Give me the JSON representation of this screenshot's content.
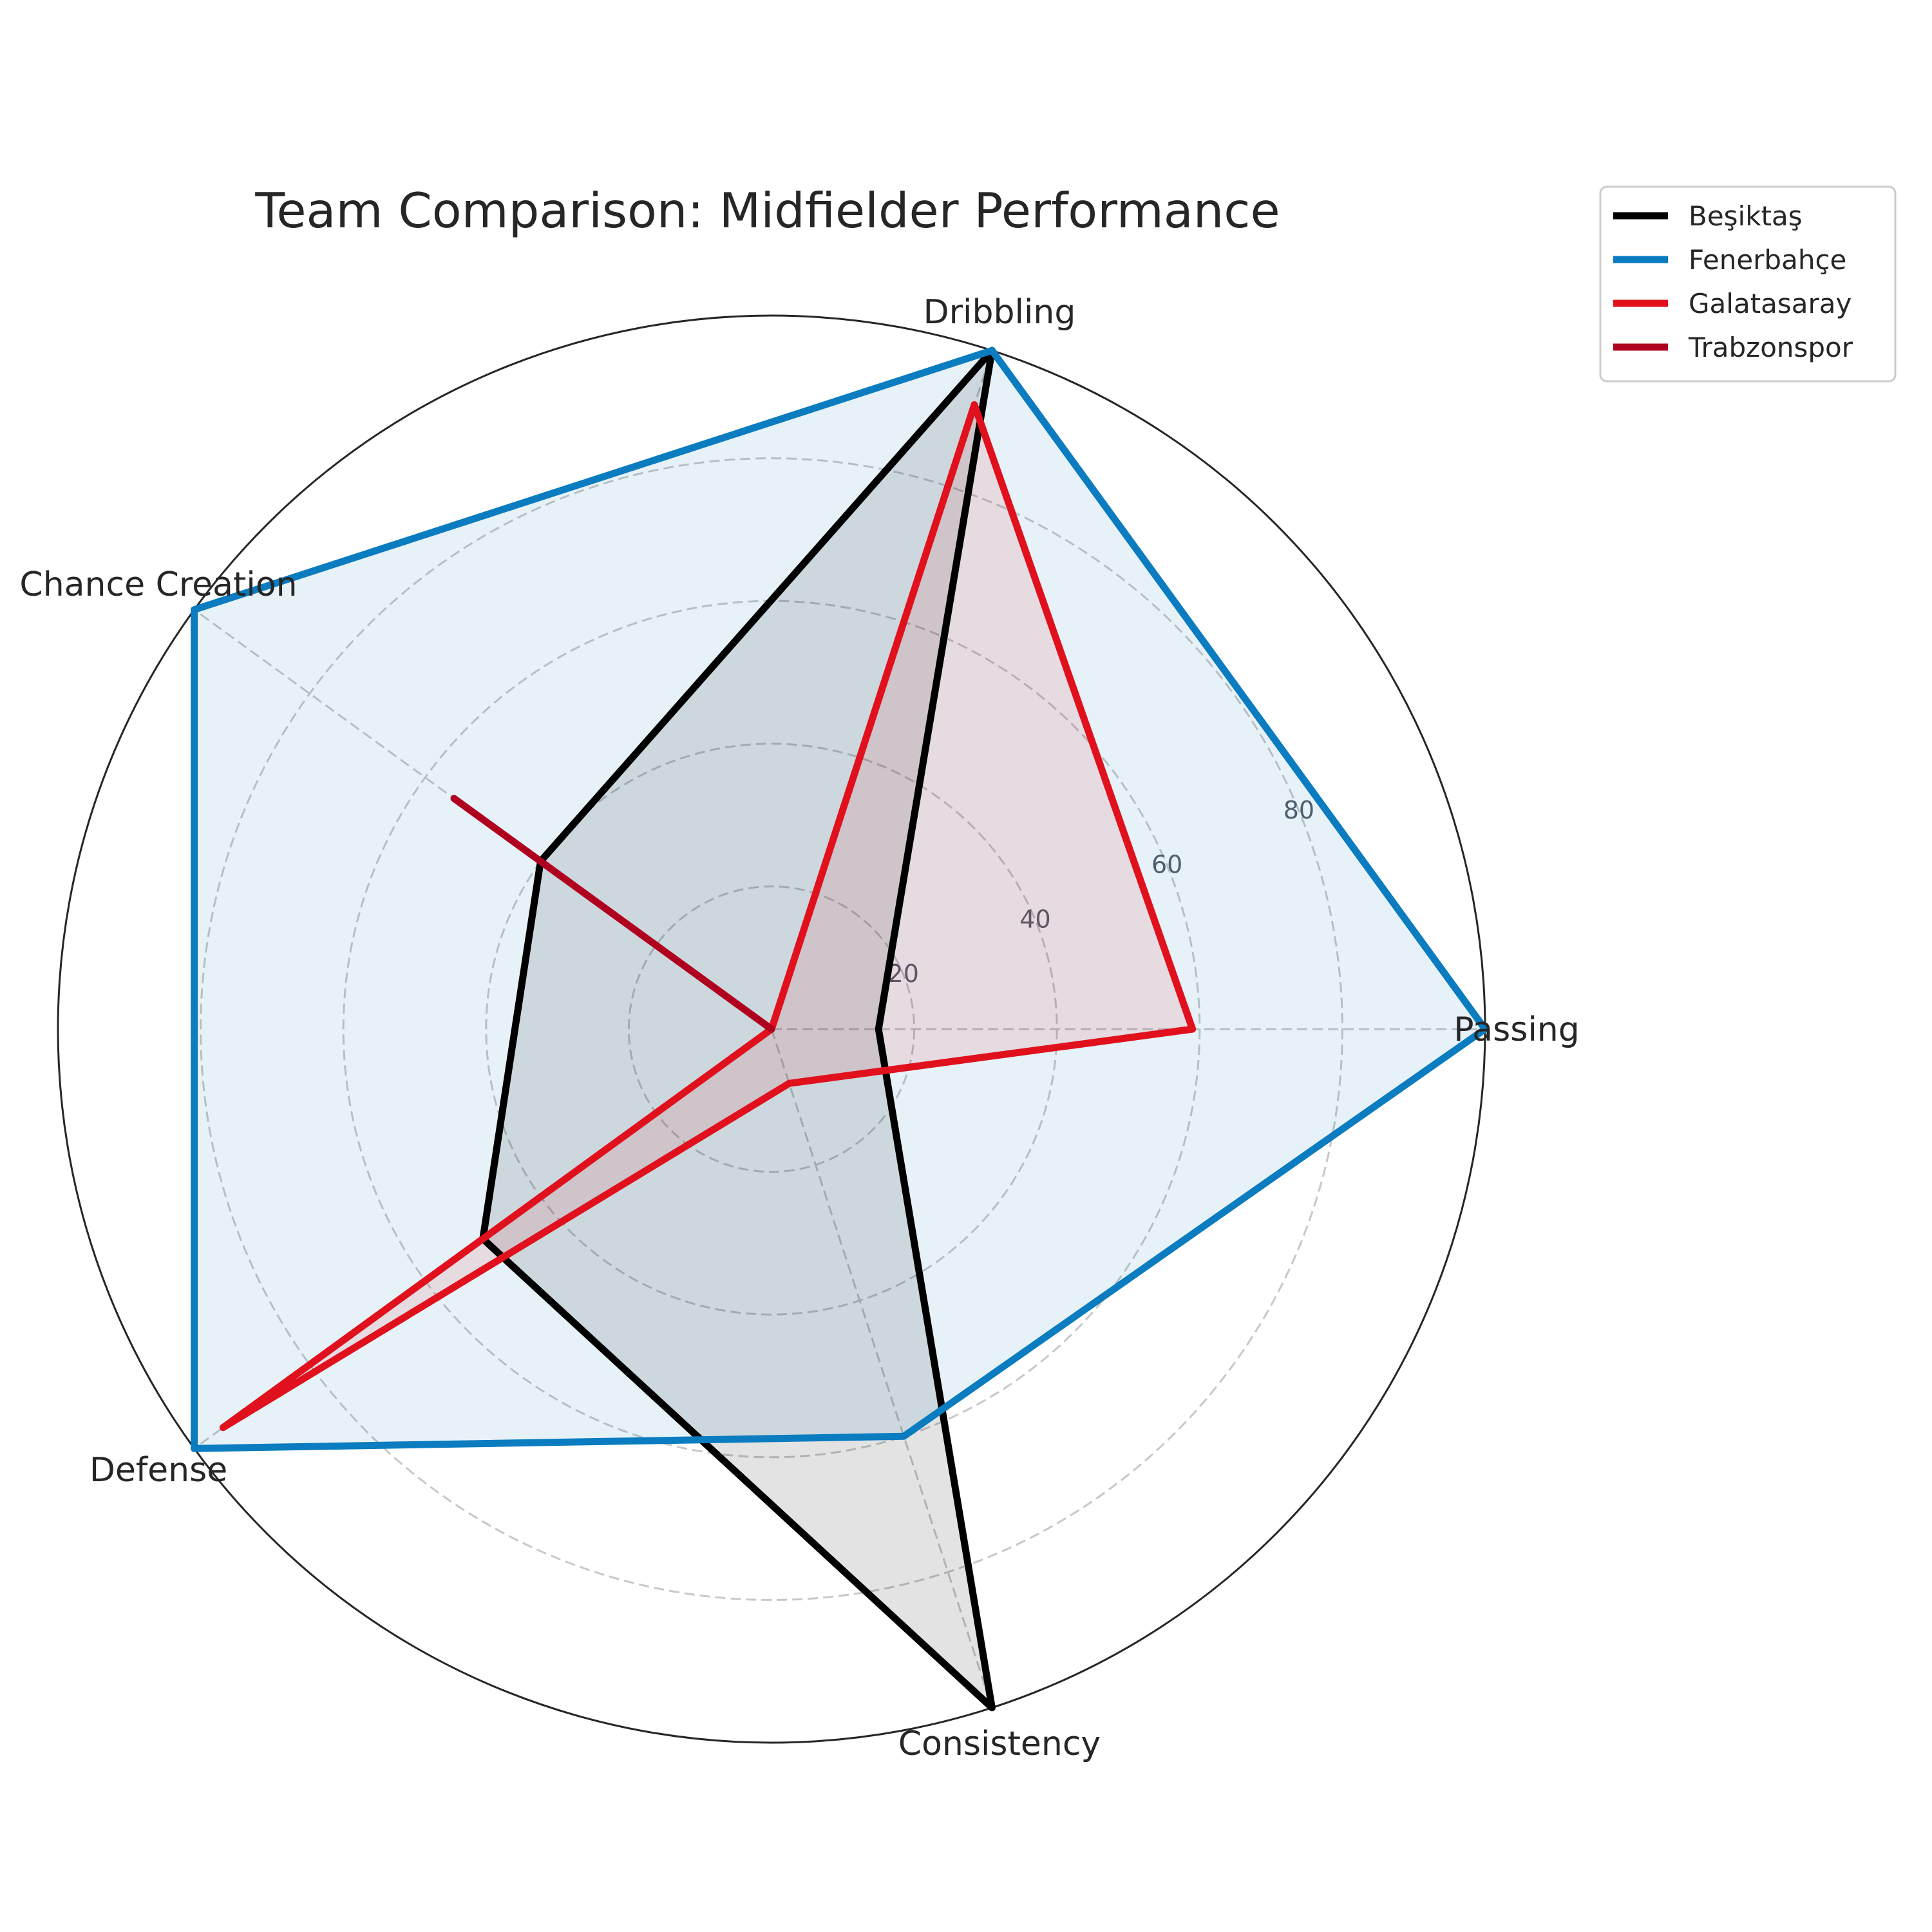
{
  "chart_data": {
    "type": "radar",
    "title": "Team Comparison: Midfielder Performance",
    "axes": [
      "Passing",
      "Dribbling",
      "Chance Creation",
      "Defense",
      "Consistency"
    ],
    "rlim": [
      0,
      100
    ],
    "r_ticks": [
      20,
      40,
      60,
      80
    ],
    "r_tick_labels": [
      "20",
      "40",
      "60",
      "80"
    ],
    "grid": true,
    "legend_position": "top-right, outside plot",
    "series": [
      {
        "name": "Beşiktaş",
        "color": "#000000",
        "fill_opacity": 0.11,
        "values": [
          15,
          100,
          40,
          50,
          100
        ]
      },
      {
        "name": "Fenerbahçe",
        "color": "#0a7cbf",
        "fill_opacity": 0.1,
        "values": [
          100,
          100,
          100,
          100,
          60
        ]
      },
      {
        "name": "Galatasaray",
        "color": "#e0101c",
        "fill_opacity": 0.1,
        "values": [
          59,
          92,
          0,
          95,
          8
        ]
      },
      {
        "name": "Trabzonspor",
        "color": "#b00020",
        "fill_opacity": 0.0,
        "values": [
          0,
          0,
          55,
          0,
          0
        ]
      }
    ]
  }
}
